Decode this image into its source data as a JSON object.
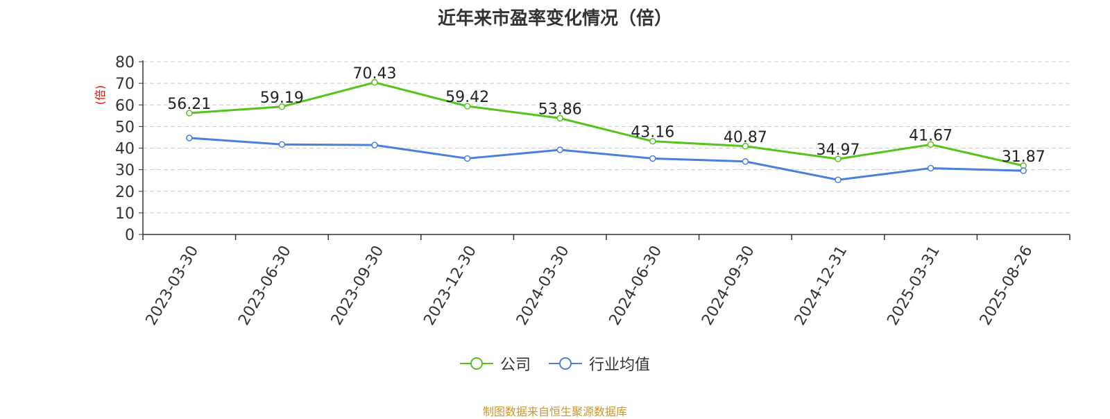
{
  "chart_data": {
    "type": "line",
    "title": "近年来市盈率变化情况（倍）",
    "ylabel": "(倍)",
    "xlabel": "",
    "categories": [
      "2023-03-30",
      "2023-06-30",
      "2023-09-30",
      "2023-12-30",
      "2024-03-30",
      "2024-06-30",
      "2024-09-30",
      "2024-12-31",
      "2025-03-31",
      "2025-08-26"
    ],
    "ylim": [
      0,
      80
    ],
    "yticks": [
      0,
      10,
      20,
      30,
      40,
      50,
      60,
      70,
      80
    ],
    "grid": true,
    "legend_position": "bottom",
    "series": [
      {
        "name": "公司",
        "color": "#52c41a",
        "show_labels": true,
        "values": [
          56.21,
          59.19,
          70.43,
          59.42,
          53.86,
          43.16,
          40.87,
          34.97,
          41.67,
          31.87
        ]
      },
      {
        "name": "行业均值",
        "color": "#4a7fdb",
        "show_labels": false,
        "values": [
          44.7,
          41.7,
          41.4,
          35.2,
          39.2,
          35.2,
          33.8,
          25.3,
          30.7,
          29.5
        ]
      }
    ]
  },
  "source_note": "制图数据来自恒生聚源数据库",
  "colors": {
    "axis": "#333333",
    "grid": "#cccccc",
    "ylabel": "#ff0000",
    "source": "#c8982e"
  }
}
